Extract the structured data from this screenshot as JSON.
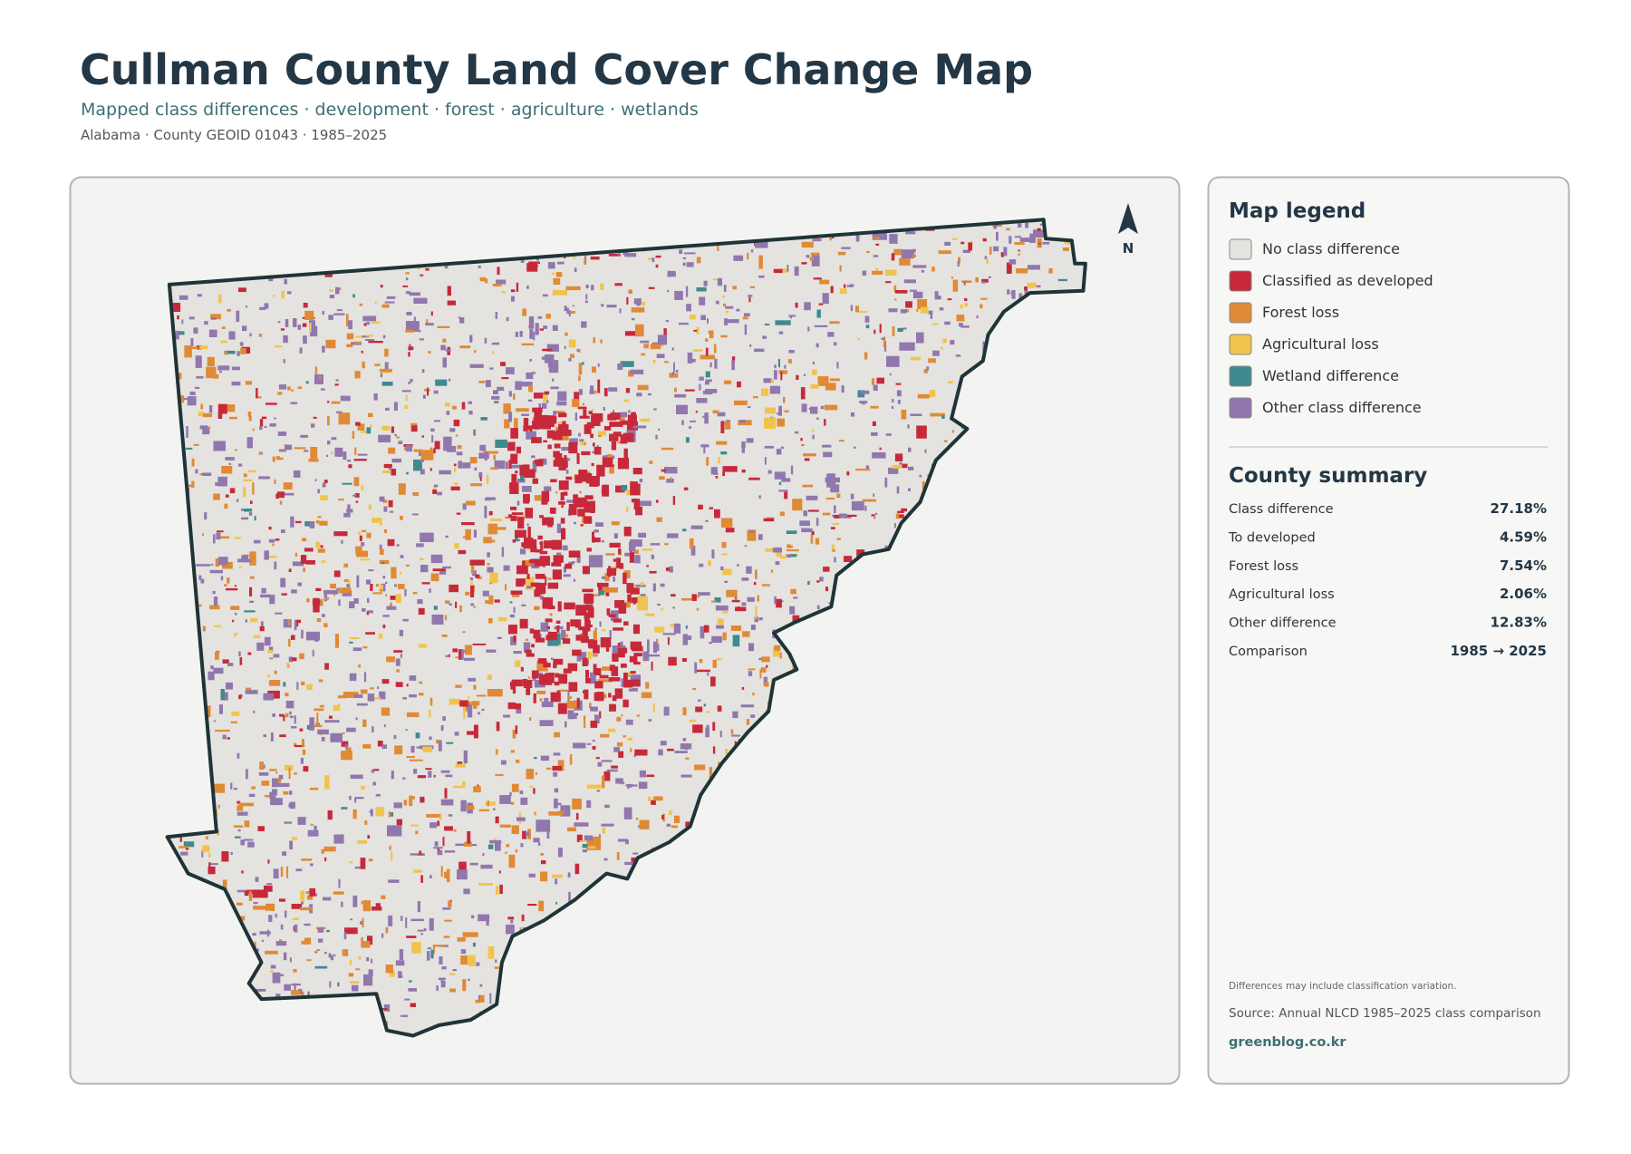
{
  "header": {
    "title": "Cullman County Land Cover Change Map",
    "subtitle": "Mapped class differences · development · forest · agriculture · wetlands",
    "meta": "Alabama · County GEOID 01043 · 1985–2025"
  },
  "map": {
    "north_label": "N"
  },
  "legend": {
    "title": "Map legend",
    "items": [
      {
        "label": "No class difference",
        "color": "#e4e3e0"
      },
      {
        "label": "Classified as developed",
        "color": "#c7293a"
      },
      {
        "label": "Forest loss",
        "color": "#e08a35"
      },
      {
        "label": "Agricultural loss",
        "color": "#f0c44c"
      },
      {
        "label": "Wetland difference",
        "color": "#3f8a8f"
      },
      {
        "label": "Other class difference",
        "color": "#9177ad"
      }
    ]
  },
  "summary": {
    "title": "County summary",
    "rows": [
      [
        "Class difference",
        "27.18%"
      ],
      [
        "To developed",
        "4.59%"
      ],
      [
        "Forest loss",
        "7.54%"
      ],
      [
        "Agricultural loss",
        "2.06%"
      ],
      [
        "Other difference",
        "12.83%"
      ],
      [
        "Comparison",
        "1985 → 2025"
      ]
    ]
  },
  "footer": {
    "note": "Differences may include classification variation.",
    "source": "Source: Annual NLCD 1985–2025 class comparison",
    "credit": "greenblog.co.kr"
  }
}
